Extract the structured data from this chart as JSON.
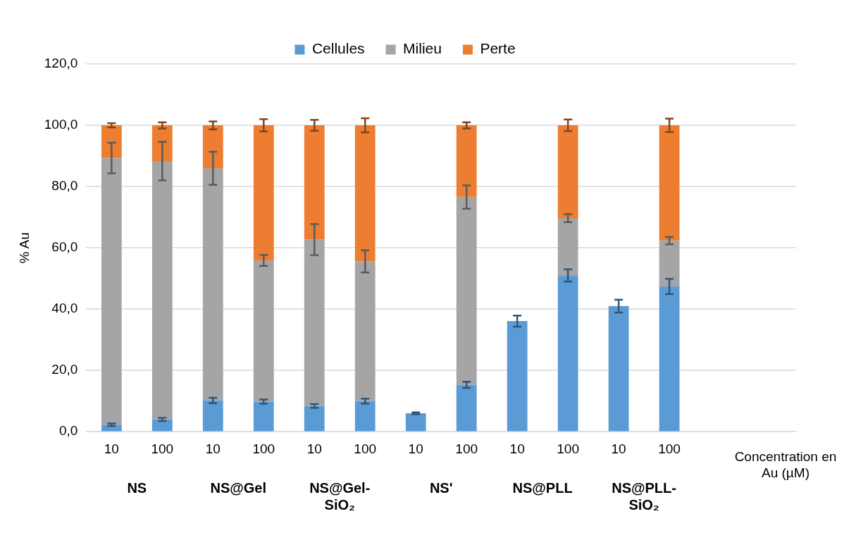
{
  "chart_data": {
    "type": "bar",
    "stacked": true,
    "xlabel": "Concentration en Au (µM)",
    "ylabel": "% Au",
    "categories": [
      "10",
      "100",
      "10",
      "100",
      "10",
      "100",
      "10",
      "100",
      "10",
      "100",
      "10",
      "100",
      null,
      null
    ],
    "annotations": [
      "NS",
      "NS@Gel",
      "NS@Gel-SiO₂",
      "NS'",
      "NS@PLL",
      "NS@PLL-SiO₂"
    ],
    "series": [
      {
        "name": "Cellules",
        "color": "#5b9bd5",
        "values": [
          2.3,
          4.0,
          10.2,
          9.8,
          8.4,
          10.0,
          6.0,
          15.3,
          36.1,
          51.0,
          41.0,
          47.4,
          null,
          null
        ],
        "errors": [
          0.4,
          0.5,
          0.9,
          0.7,
          0.6,
          0.8,
          0.3,
          1.0,
          1.8,
          2.0,
          2.1,
          2.5,
          null,
          null
        ]
      },
      {
        "name": "Milieu",
        "color": "#a5a5a5",
        "values": [
          87.0,
          84.3,
          75.8,
          46.1,
          54.3,
          45.6,
          null,
          61.3,
          null,
          18.7,
          null,
          15.0,
          null,
          null
        ],
        "errors": [
          5.0,
          6.3,
          5.4,
          1.8,
          5.1,
          3.6,
          null,
          3.8,
          null,
          1.3,
          null,
          1.2,
          null,
          null
        ]
      },
      {
        "name": "Perte",
        "color": "#ed7d31",
        "values": [
          10.7,
          11.7,
          14.0,
          44.1,
          37.3,
          44.4,
          null,
          23.4,
          null,
          30.3,
          null,
          37.6,
          null,
          null
        ],
        "errors": [
          0.7,
          1.0,
          1.3,
          2.0,
          1.8,
          2.3,
          null,
          1.0,
          null,
          1.9,
          null,
          2.2,
          null,
          null
        ]
      }
    ],
    "ylim": [
      0,
      120
    ],
    "yticks": [
      {
        "value": 0,
        "label": "0,0"
      },
      {
        "value": 20,
        "label": "20,0"
      },
      {
        "value": 40,
        "label": "40,0"
      },
      {
        "value": 60,
        "label": "60,0"
      },
      {
        "value": 80,
        "label": "80,0"
      },
      {
        "value": 100,
        "label": "100,0"
      },
      {
        "value": 120,
        "label": "120,0"
      }
    ],
    "grid": "y",
    "legend": "top"
  }
}
